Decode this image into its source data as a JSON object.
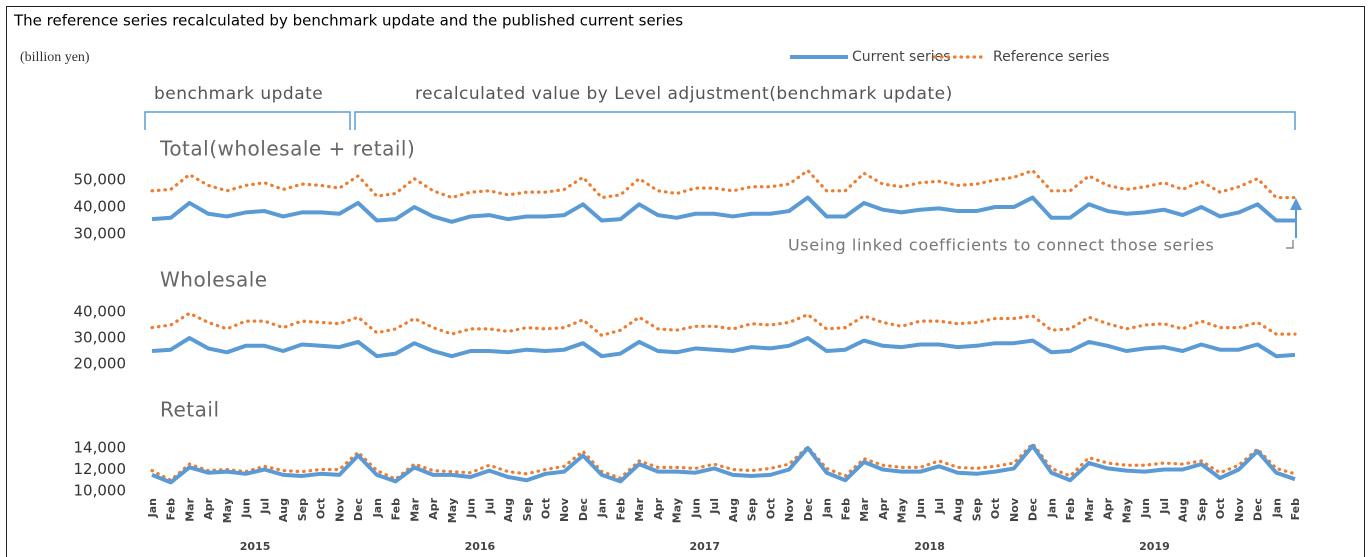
{
  "title": "The reference series recalculated by benchmark update and the published current series",
  "unit": "(billion yen)",
  "legend": [
    {
      "name": "Current series",
      "color": "#5b9bd5",
      "style": "solid"
    },
    {
      "name": "Reference series",
      "color": "#ed7d31",
      "style": "dotted"
    }
  ],
  "brackets": [
    "benchmark update",
    "recalculated value by Level adjustment(benchmark update)"
  ],
  "annotation": "Useing linked coefficients to connect those series",
  "x_axis": {
    "categories": [
      "Jan",
      "Feb",
      "Mar",
      "Apr",
      "May",
      "Jun",
      "Jul",
      "Aug",
      "Sep",
      "Oct",
      "Nov",
      "Dec",
      "Jan",
      "Feb",
      "Mar",
      "Apr",
      "May",
      "Jun",
      "Jul",
      "Aug",
      "Sep",
      "Oct",
      "Nov",
      "Dec",
      "Jan",
      "Feb",
      "Mar",
      "Apr",
      "May",
      "Jun",
      "Jul",
      "Aug",
      "Sep",
      "Oct",
      "Nov",
      "Dec",
      "Jan",
      "Feb",
      "Mar",
      "Apr",
      "May",
      "Jun",
      "Jul",
      "Aug",
      "Sep",
      "Oct",
      "Nov",
      "Dec",
      "Jan",
      "Feb",
      "Mar",
      "Apr",
      "May",
      "Jun",
      "Jul",
      "Aug",
      "Sep",
      "Oct",
      "Nov",
      "Dec",
      "Jan",
      "Feb"
    ],
    "years": [
      "2015",
      "2016",
      "2017",
      "2018",
      "2019"
    ]
  },
  "chart_data": [
    {
      "type": "line",
      "title": "Total(wholesale + retail)",
      "ylim": [
        28000,
        54000
      ],
      "yticks": [
        {
          "value": 30000,
          "label": "30,000"
        },
        {
          "value": 40000,
          "label": "40,000"
        },
        {
          "value": 50000,
          "label": "50,000"
        }
      ],
      "series": [
        {
          "values": [
            35500,
            36000,
            41500,
            37500,
            36500,
            38000,
            38500,
            36500,
            38000,
            38000,
            37500,
            41500,
            35000,
            35500,
            40000,
            36500,
            34500,
            36500,
            37000,
            35500,
            36500,
            36500,
            37000,
            41000,
            35000,
            35500,
            41000,
            37000,
            36000,
            37500,
            37500,
            36500,
            37500,
            37500,
            38500,
            43500,
            36500,
            36500,
            41500,
            39000,
            38000,
            39000,
            39500,
            38500,
            38500,
            40000,
            40000,
            43500,
            36000,
            36000,
            41000,
            38500,
            37500,
            38000,
            39000,
            37000,
            40000,
            36500,
            38000,
            41000,
            35000,
            35000
          ]
        },
        {
          "values": [
            46000,
            46500,
            52000,
            48000,
            46000,
            48000,
            49000,
            46500,
            48500,
            48000,
            47000,
            51500,
            44000,
            45000,
            50500,
            46000,
            43500,
            45500,
            46000,
            44500,
            45500,
            45500,
            46500,
            51000,
            43500,
            44500,
            50500,
            46000,
            45000,
            47000,
            47000,
            46000,
            47500,
            47500,
            48500,
            53500,
            46000,
            46000,
            52500,
            48500,
            47500,
            49000,
            49500,
            48000,
            48500,
            50000,
            51000,
            53500,
            46000,
            46000,
            51500,
            48000,
            46500,
            47500,
            49000,
            46500,
            49500,
            45500,
            47500,
            50500,
            43500,
            43500
          ]
        }
      ]
    },
    {
      "type": "line",
      "title": "Wholesale",
      "ylim": [
        18000,
        41000
      ],
      "yticks": [
        {
          "value": 20000,
          "label": "20,000"
        },
        {
          "value": 30000,
          "label": "30,000"
        },
        {
          "value": 40000,
          "label": "40,000"
        }
      ],
      "series": [
        {
          "values": [
            25000,
            25500,
            30000,
            26000,
            24500,
            27000,
            27000,
            25000,
            27500,
            27000,
            26500,
            28500,
            23000,
            24000,
            28000,
            25000,
            23000,
            25000,
            25000,
            24500,
            25500,
            25000,
            25500,
            28000,
            23000,
            24000,
            28500,
            25000,
            24500,
            26000,
            25500,
            25000,
            26500,
            26000,
            27000,
            30000,
            25000,
            25500,
            29000,
            27000,
            26500,
            27500,
            27500,
            26500,
            27000,
            28000,
            28000,
            29000,
            24500,
            25000,
            28500,
            27000,
            25000,
            26000,
            26500,
            25000,
            27500,
            25500,
            25500,
            27500,
            23000,
            23500
          ]
        },
        {
          "values": [
            34000,
            35000,
            39500,
            36000,
            33500,
            36500,
            36500,
            34000,
            36500,
            36000,
            35500,
            38000,
            32000,
            33500,
            37500,
            34000,
            31500,
            33500,
            33500,
            32500,
            34000,
            33500,
            34000,
            37000,
            31000,
            33000,
            38000,
            33500,
            33000,
            34500,
            34500,
            33500,
            35500,
            35000,
            36000,
            39000,
            33500,
            34000,
            38500,
            36000,
            34500,
            36500,
            36500,
            35500,
            36000,
            37500,
            37500,
            38500,
            33000,
            33500,
            38000,
            35500,
            33500,
            35000,
            35500,
            33500,
            36500,
            34000,
            34000,
            36000,
            31500,
            31500
          ]
        }
      ]
    },
    {
      "type": "line",
      "title": "Retail",
      "ylim": [
        9500,
        14500
      ],
      "yticks": [
        {
          "value": 10000,
          "label": "10,000"
        },
        {
          "value": 12000,
          "label": "12,000"
        },
        {
          "value": 14000,
          "label": "14,000"
        }
      ],
      "series": [
        {
          "values": [
            11500,
            10800,
            12200,
            11700,
            11800,
            11600,
            12000,
            11500,
            11400,
            11600,
            11500,
            13300,
            11500,
            10900,
            12200,
            11500,
            11500,
            11300,
            11900,
            11300,
            11000,
            11600,
            11800,
            13300,
            11500,
            10900,
            12500,
            11800,
            11800,
            11700,
            12100,
            11500,
            11400,
            11500,
            12000,
            14000,
            11700,
            11000,
            12700,
            12000,
            11800,
            11800,
            12300,
            11700,
            11600,
            11800,
            12100,
            14200,
            11700,
            11000,
            12600,
            12100,
            11900,
            11800,
            12000,
            12000,
            12500,
            11200,
            12000,
            13700,
            11700,
            11100
          ]
        },
        {
          "values": [
            11900,
            11000,
            12500,
            11900,
            12000,
            11800,
            12300,
            11900,
            11800,
            12000,
            12000,
            13600,
            11900,
            11100,
            12500,
            11900,
            11800,
            11700,
            12400,
            11800,
            11600,
            12000,
            12300,
            13700,
            11800,
            11200,
            12800,
            12200,
            12200,
            12100,
            12500,
            12000,
            11900,
            12100,
            12500,
            14100,
            12100,
            11400,
            13000,
            12400,
            12200,
            12200,
            12800,
            12200,
            12100,
            12300,
            12600,
            14400,
            12100,
            11400,
            13100,
            12600,
            12400,
            12400,
            12600,
            12500,
            12800,
            11700,
            12400,
            13900,
            12100,
            11600
          ]
        }
      ]
    }
  ]
}
